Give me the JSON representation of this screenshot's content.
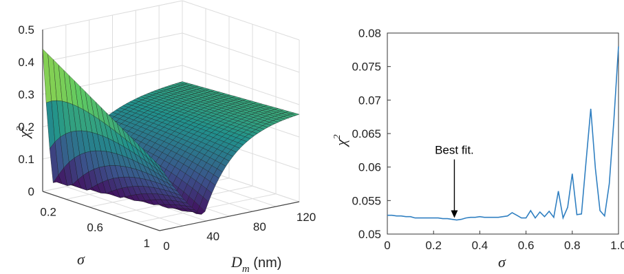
{
  "chart_data": [
    {
      "type": "surface",
      "zlabel": "χ",
      "zlabel_sup": "2",
      "xlabel": "σ",
      "ylabel_main": "D",
      "ylabel_sub": "m",
      "ylabel_unit": " (nm)",
      "z_ticks": [
        "0",
        "0.1",
        "0.2",
        "0.3",
        "0.4",
        "0.5"
      ],
      "sigma_ticks": [
        "0.2",
        "0.6",
        "1"
      ],
      "dm_ticks": [
        "0",
        "40",
        "80",
        "120"
      ],
      "zlim": [
        0,
        0.5
      ],
      "sigma_range": [
        0,
        1
      ],
      "dm_range": [
        0,
        120
      ],
      "colormap": "viridis",
      "grid": true
    },
    {
      "type": "line",
      "xlabel": "σ",
      "ylabel": "χ",
      "ylabel_sup": "2",
      "xlim": [
        0,
        1
      ],
      "ylim": [
        0.05,
        0.08
      ],
      "x_ticks": [
        "0",
        "0.2",
        "0.4",
        "0.6",
        "0.8",
        "1.0"
      ],
      "y_ticks": [
        "0.05",
        "0.055",
        "0.06",
        "0.065",
        "0.07",
        "0.075",
        "0.08"
      ],
      "color": "#2f7fc1",
      "annotation": {
        "text": "Best fit.",
        "x": 0.29,
        "y": 0.0521
      },
      "x": [
        0.0,
        0.02,
        0.04,
        0.06,
        0.08,
        0.1,
        0.12,
        0.14,
        0.16,
        0.18,
        0.2,
        0.22,
        0.24,
        0.26,
        0.28,
        0.3,
        0.32,
        0.34,
        0.36,
        0.38,
        0.4,
        0.42,
        0.44,
        0.46,
        0.48,
        0.5,
        0.52,
        0.54,
        0.56,
        0.58,
        0.6,
        0.62,
        0.64,
        0.66,
        0.68,
        0.7,
        0.72,
        0.74,
        0.76,
        0.78,
        0.8,
        0.82,
        0.84,
        0.86,
        0.88,
        0.9,
        0.92,
        0.94,
        0.96,
        0.98,
        1.0
      ],
      "y": [
        0.0528,
        0.0528,
        0.0527,
        0.0527,
        0.0526,
        0.0526,
        0.0524,
        0.0524,
        0.0524,
        0.0524,
        0.0524,
        0.0524,
        0.0523,
        0.0523,
        0.0522,
        0.0521,
        0.0522,
        0.0524,
        0.0525,
        0.0525,
        0.0526,
        0.0525,
        0.0525,
        0.0525,
        0.0525,
        0.0526,
        0.0527,
        0.0532,
        0.0528,
        0.0524,
        0.0524,
        0.0535,
        0.0524,
        0.0533,
        0.0526,
        0.0534,
        0.0525,
        0.0564,
        0.0524,
        0.054,
        0.059,
        0.0529,
        0.053,
        0.061,
        0.0687,
        0.0598,
        0.0535,
        0.0527,
        0.0575,
        0.067,
        0.078
      ]
    }
  ]
}
